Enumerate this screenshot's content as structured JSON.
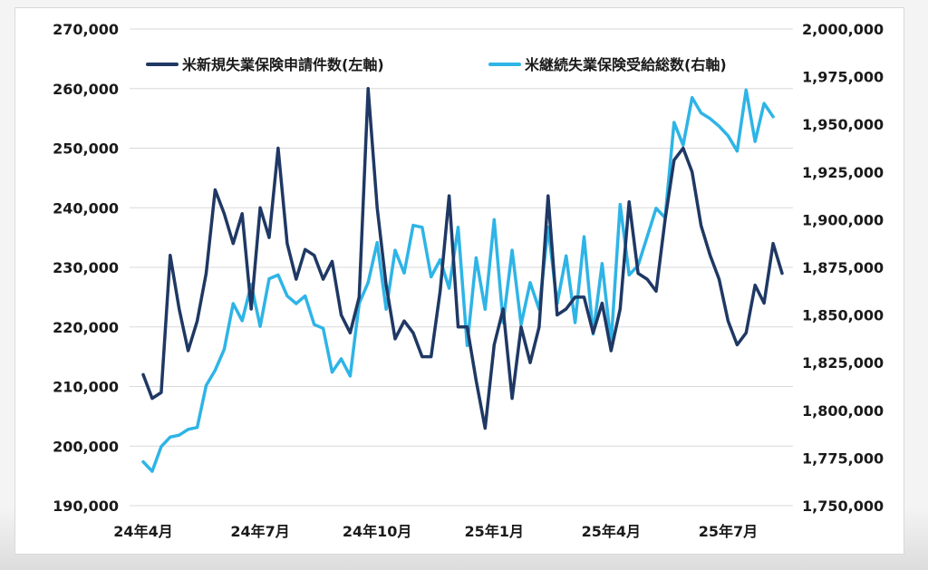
{
  "chart_data": {
    "type": "line",
    "title": "",
    "xlabel": "",
    "ylabel_left": "",
    "ylabel_right": "",
    "grid": true,
    "legend_position": "top",
    "x_tick_labels": [
      "24年4月",
      "24年7月",
      "24年10月",
      "25年1月",
      "25年4月",
      "25年7月"
    ],
    "x_tick_weeks": [
      0,
      13,
      26,
      39,
      52,
      65
    ],
    "y_left": {
      "range": [
        190000,
        270000
      ],
      "ticks": [
        190000,
        200000,
        210000,
        220000,
        230000,
        240000,
        250000,
        260000,
        270000
      ],
      "tick_labels": [
        "190,000",
        "200,000",
        "210,000",
        "220,000",
        "230,000",
        "240,000",
        "250,000",
        "260,000",
        "270,000"
      ]
    },
    "y_right": {
      "range": [
        1750000,
        2000000
      ],
      "ticks": [
        1750000,
        1775000,
        1800000,
        1825000,
        1850000,
        1875000,
        1900000,
        1925000,
        1950000,
        1975000,
        2000000
      ],
      "tick_labels": [
        "1,750,000",
        "1,775,000",
        "1,800,000",
        "1,825,000",
        "1,850,000",
        "1,875,000",
        "1,900,000",
        "1,925,000",
        "1,950,000",
        "1,975,000",
        "2,000,000"
      ]
    },
    "series": [
      {
        "name": "米新規失業保険申請件数(左軸)",
        "axis": "left",
        "color": "#1f3864",
        "values": [
          212000,
          208000,
          209000,
          232000,
          223000,
          216000,
          221000,
          229000,
          243000,
          239000,
          234000,
          239000,
          223000,
          240000,
          235000,
          250000,
          234000,
          228000,
          233000,
          232000,
          228000,
          231000,
          222000,
          219000,
          225000,
          260000,
          240000,
          227000,
          218000,
          221000,
          219000,
          215000,
          215000,
          226000,
          242000,
          220000,
          220000,
          211000,
          203000,
          217000,
          223000,
          208000,
          220000,
          214000,
          220000,
          242000,
          222000,
          223000,
          225000,
          225000,
          219000,
          224000,
          216000,
          223000,
          241000,
          229000,
          228000,
          226000,
          238000,
          248000,
          250000,
          246000,
          237000,
          232000,
          228000,
          221000,
          217000,
          219000,
          227000,
          224000,
          234000,
          229000
        ]
      },
      {
        "name": "米継続失業保険受給総数(右軸)",
        "axis": "right",
        "color": "#2eb4e6",
        "values": [
          1773000,
          1768000,
          1781000,
          1786000,
          1787000,
          1790000,
          1791000,
          1813000,
          1821000,
          1832000,
          1856000,
          1847000,
          1866000,
          1844000,
          1869000,
          1871000,
          1860000,
          1856000,
          1860000,
          1845000,
          1843000,
          1820000,
          1827000,
          1818000,
          1856000,
          1867000,
          1888000,
          1853000,
          1884000,
          1872000,
          1897000,
          1896000,
          1870000,
          1879000,
          1864000,
          1896000,
          1834000,
          1880000,
          1853000,
          1900000,
          1846000,
          1884000,
          1845000,
          1867000,
          1853000,
          1896000,
          1856000,
          1881000,
          1846000,
          1891000,
          1840000,
          1877000,
          1835000,
          1908000,
          1871000,
          1876000,
          1891000,
          1906000,
          1901000,
          1951000,
          1939000,
          1964000,
          1956000,
          1953000,
          1949000,
          1944000,
          1936000,
          1968000,
          1941000,
          1961000,
          1954000
        ]
      }
    ]
  }
}
